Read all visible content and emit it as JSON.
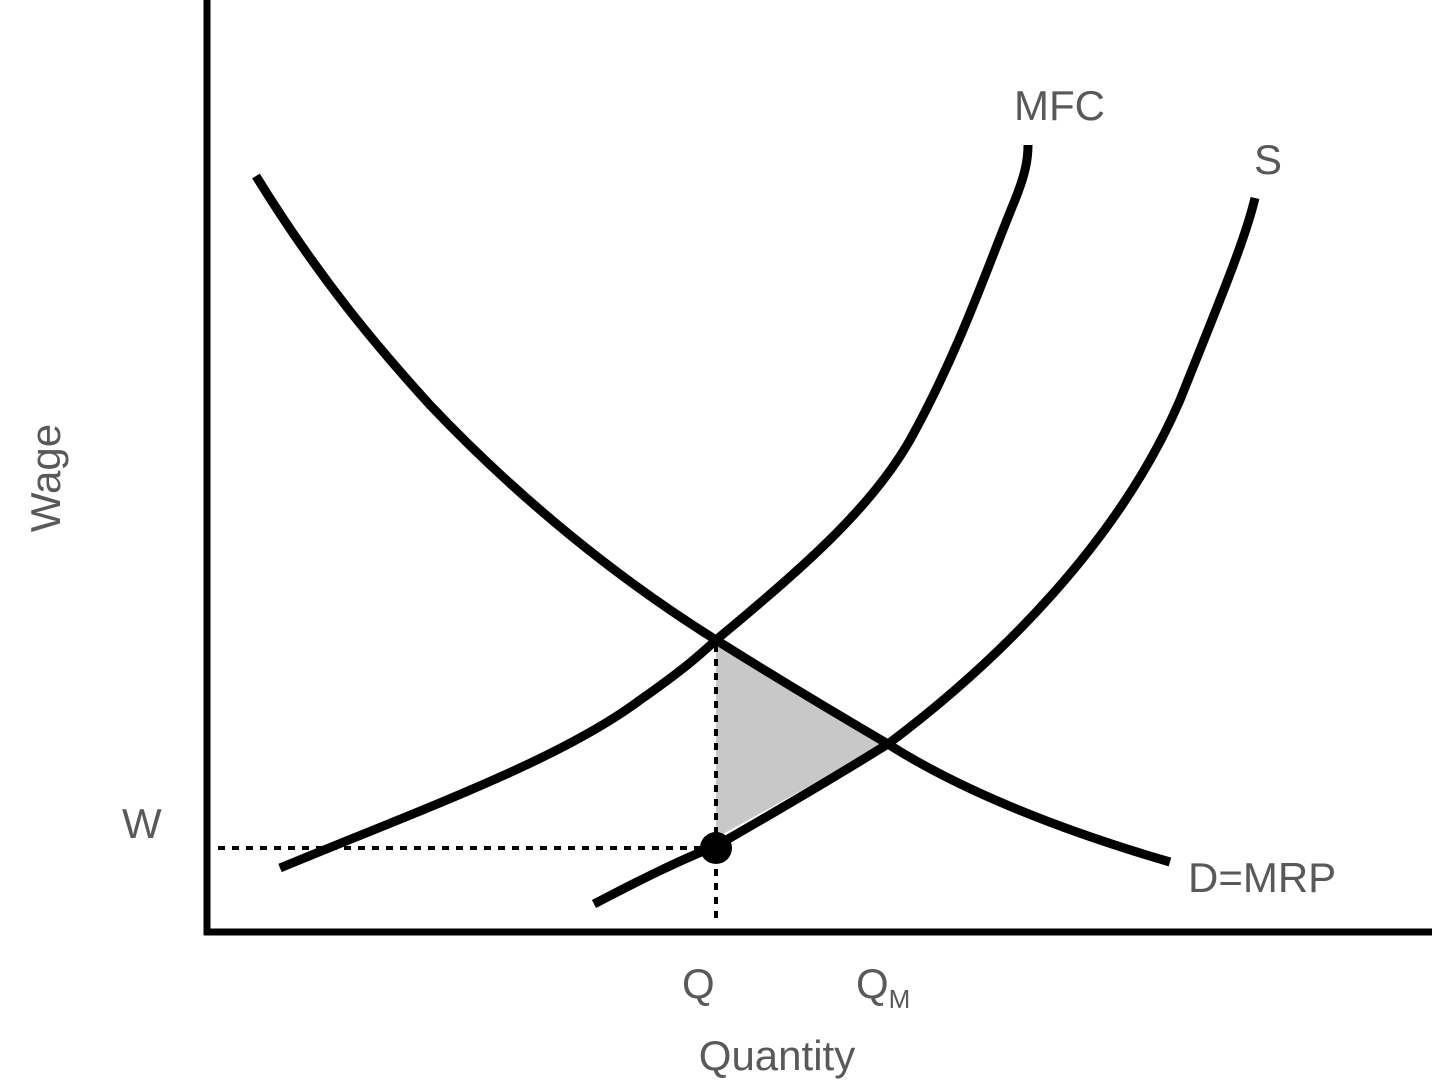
{
  "axes": {
    "y_label": "Wage",
    "x_label": "Quantity"
  },
  "curves": {
    "mfc_label": "MFC",
    "supply_label": "S",
    "demand_label": "D=MRP"
  },
  "markers": {
    "wage_label": "W",
    "q_label": "Q",
    "qm_label": "Q",
    "qm_subscript": "M"
  },
  "colors": {
    "curves": "#000000",
    "deadweight_loss_fill": "#c8c8c8",
    "labels": "#595959"
  }
}
